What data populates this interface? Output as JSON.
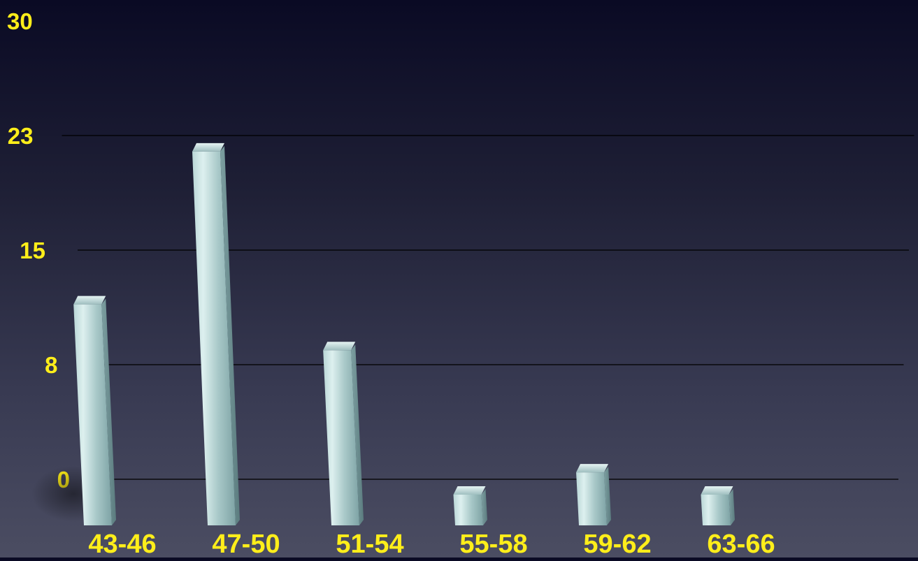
{
  "chart_data": {
    "type": "bar",
    "categories": [
      "43-46",
      "47-50",
      "51-54",
      "55-58",
      "59-62",
      "63-66"
    ],
    "values": [
      12,
      22,
      9,
      0,
      1,
      0
    ],
    "y_tick_labels": [
      "0",
      "8",
      "15",
      "23",
      "30"
    ],
    "y_tick_values": [
      0,
      7.5,
      15,
      22.5,
      30
    ],
    "ylim": [
      0,
      30
    ],
    "grid": true,
    "colors": {
      "bar": "#9fc3c4",
      "label": "#ffee1a",
      "grid": "#000000"
    }
  }
}
